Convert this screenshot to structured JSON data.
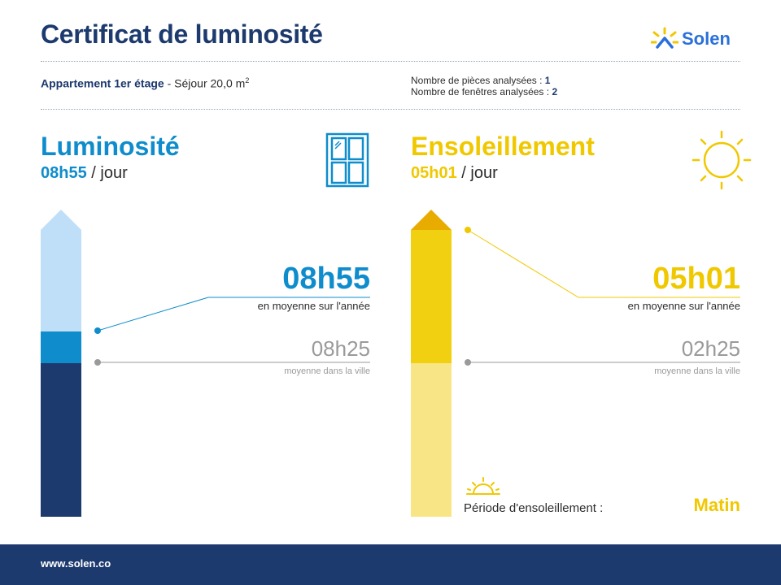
{
  "header": {
    "title": "Certificat de luminosité",
    "brand": "Solen"
  },
  "apartment": {
    "name": "Appartement 1er étage",
    "room": " - Séjour 20,0 m",
    "area_exp": "2",
    "rooms_label": "Nombre de pièces analysées : ",
    "rooms_value": "1",
    "windows_label": "Nombre de fenêtres analysées : ",
    "windows_value": "2"
  },
  "luminosite": {
    "title": "Luminosité",
    "duration": "08h55",
    "per_day": " / jour",
    "value": "08h55",
    "value_caption": "en moyenne sur l'année",
    "city_value": "08h25",
    "city_caption": "moyenne dans la ville",
    "icon": "window-icon",
    "color": "#0e8ccc"
  },
  "ensoleillement": {
    "title": "Ensoleillement",
    "duration": "05h01",
    "per_day": " / jour",
    "value": "05h01",
    "value_caption": "en moyenne sur l'année",
    "city_value": "02h25",
    "city_caption": "moyenne dans la ville",
    "icon": "sun-icon",
    "color": "#f0c800",
    "period_label": "Période d'ensoleillement :",
    "period_value": "Matin"
  },
  "footer": {
    "url": "www.solen.co"
  },
  "colors": {
    "navy": "#1d3a6e",
    "blue": "#0e8ccc",
    "light_blue": "#bfdff8",
    "yellow": "#f0c800",
    "dark_yellow": "#e8ac00",
    "light_yellow": "#f8e585",
    "grey": "#9a9a9a"
  }
}
